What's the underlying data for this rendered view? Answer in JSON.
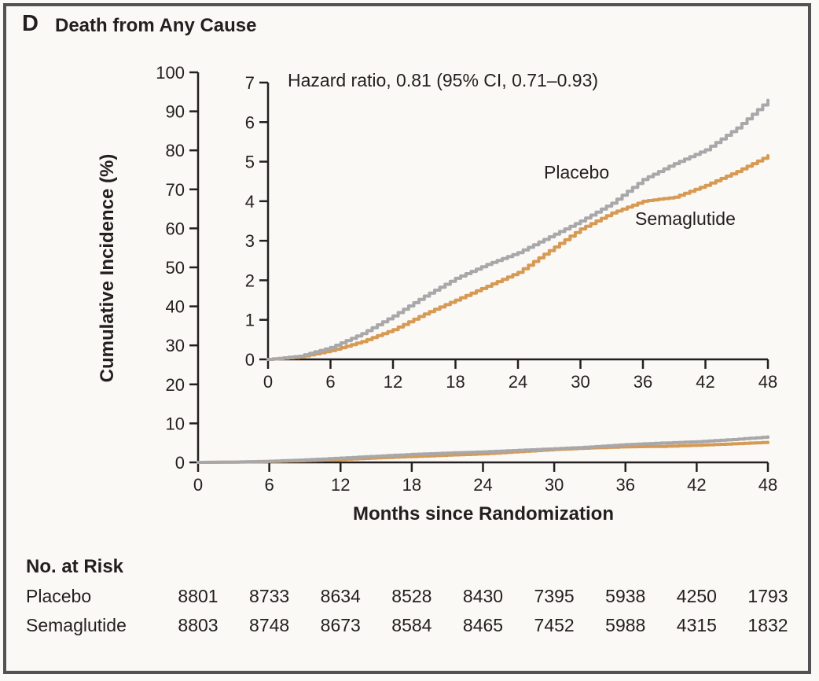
{
  "panel": {
    "letter": "D",
    "title": "Death from Any Cause"
  },
  "annotation": {
    "hazard_ratio": "Hazard ratio, 0.81 (95% CI, 0.71–0.93)"
  },
  "chart_data": {
    "type": "line",
    "title": "Death from Any Cause",
    "xlabel": "Months since Randomization",
    "ylabel": "Cumulative Incidence (%)",
    "x": [
      0,
      3,
      6,
      9,
      12,
      15,
      18,
      21,
      24,
      27,
      30,
      33,
      36,
      39,
      42,
      45,
      48
    ],
    "x_ticks": [
      0,
      6,
      12,
      18,
      24,
      30,
      36,
      42,
      48
    ],
    "main_axis": {
      "ylim": [
        0,
        100
      ],
      "y_ticks": [
        0,
        10,
        20,
        30,
        40,
        50,
        60,
        70,
        80,
        90,
        100
      ]
    },
    "inset_axis": {
      "ylim": [
        0,
        7
      ],
      "y_ticks": [
        0,
        1,
        2,
        3,
        4,
        5,
        6,
        7
      ]
    },
    "series": [
      {
        "name": "Placebo",
        "color": "#a8a8aa",
        "values": [
          0,
          0.08,
          0.3,
          0.65,
          1.1,
          1.6,
          2.05,
          2.4,
          2.7,
          3.1,
          3.5,
          3.95,
          4.55,
          4.95,
          5.3,
          5.85,
          6.55
        ]
      },
      {
        "name": "Semaglutide",
        "color": "#d69a55",
        "values": [
          0,
          0.06,
          0.22,
          0.45,
          0.75,
          1.15,
          1.5,
          1.85,
          2.2,
          2.75,
          3.3,
          3.7,
          4.0,
          4.1,
          4.4,
          4.75,
          5.15
        ]
      }
    ],
    "annotation": "Hazard ratio, 0.81 (95% CI, 0.71–0.93)",
    "legend_position": "inline-labels",
    "grid": false
  },
  "risk_table": {
    "heading": "No. at Risk",
    "months": [
      0,
      6,
      12,
      18,
      24,
      30,
      36,
      42,
      48
    ],
    "rows": [
      {
        "label": "Placebo",
        "values": [
          "8801",
          "8733",
          "8634",
          "8528",
          "8430",
          "7395",
          "5938",
          "4250",
          "1793"
        ]
      },
      {
        "label": "Semaglutide",
        "values": [
          "8803",
          "8748",
          "8673",
          "8584",
          "8465",
          "7452",
          "5988",
          "4315",
          "1832"
        ]
      }
    ]
  },
  "colors": {
    "text": "#231f20",
    "axis": "#231f20",
    "placebo": "#a8a8aa",
    "semaglutide": "#d69a55",
    "background": "#fbf9f5",
    "border": "#525254"
  }
}
